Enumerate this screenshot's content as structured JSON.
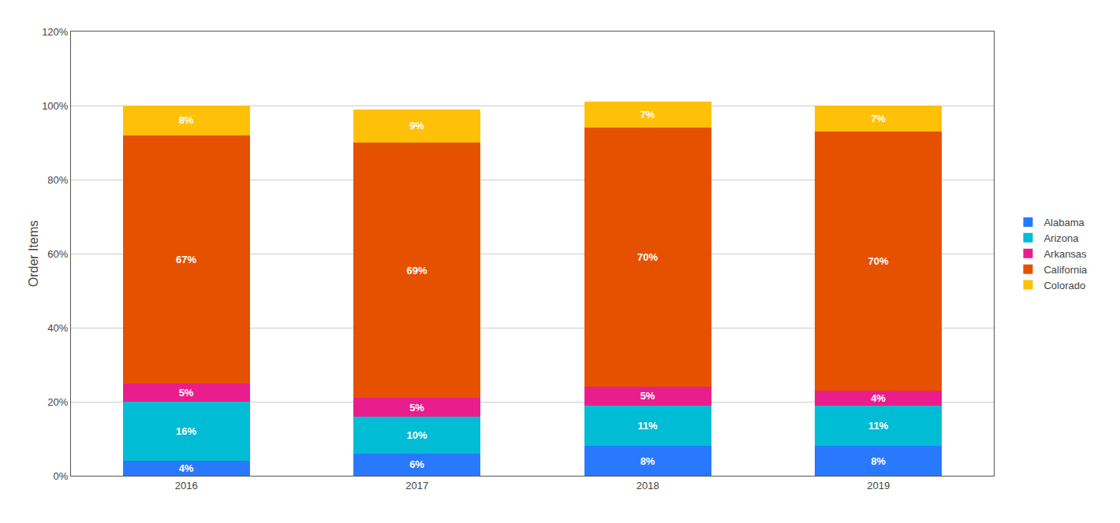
{
  "chart_data": {
    "type": "bar",
    "stacked": true,
    "categories": [
      "2016",
      "2017",
      "2018",
      "2019"
    ],
    "series": [
      {
        "name": "Alabama",
        "color": "#2979FF",
        "values": [
          4,
          6,
          8,
          8
        ],
        "value_labels": [
          "4%",
          "6%",
          "8%",
          "8%"
        ]
      },
      {
        "name": "Arizona",
        "color": "#00BCD4",
        "values": [
          16,
          10,
          11,
          11
        ],
        "value_labels": [
          "16%",
          "10%",
          "11%",
          "11%"
        ]
      },
      {
        "name": "Arkansas",
        "color": "#E91E8C",
        "values": [
          5,
          5,
          5,
          4
        ],
        "value_labels": [
          "5%",
          "5%",
          "5%",
          "4%"
        ]
      },
      {
        "name": "California",
        "color": "#E65100",
        "values": [
          67,
          69,
          70,
          70
        ],
        "value_labels": [
          "67%",
          "69%",
          "70%",
          "70%"
        ]
      },
      {
        "name": "Colorado",
        "color": "#FFC107",
        "values": [
          8,
          9,
          7,
          7
        ],
        "value_labels": [
          "8%",
          "9%",
          "7%",
          "7%"
        ]
      }
    ],
    "ylabel": "Order Items",
    "ylim": [
      0,
      120
    ],
    "yticks": [
      {
        "value": 0,
        "label": "0%"
      },
      {
        "value": 20,
        "label": "20%"
      },
      {
        "value": 40,
        "label": "40%"
      },
      {
        "value": 60,
        "label": "60%"
      },
      {
        "value": 80,
        "label": "80%"
      },
      {
        "value": 100,
        "label": "100%"
      },
      {
        "value": 120,
        "label": "120%"
      }
    ],
    "grid": true,
    "data_labels": true,
    "legend": "right"
  }
}
